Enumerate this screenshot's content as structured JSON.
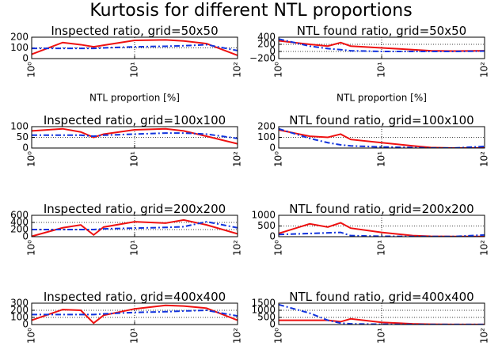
{
  "title": "Kurtosis for different NTL proportions",
  "chart_data": [
    {
      "type": "line",
      "title": "Inspected ratio, grid=50x50",
      "xlabel": "NTL proportion [%]",
      "x": [
        1,
        2,
        3,
        4,
        5,
        10,
        20,
        30,
        50,
        100
      ],
      "xscale": "log",
      "xlim": [
        1,
        100
      ],
      "xticks": [
        {
          "value": 1,
          "label": "10⁰"
        },
        {
          "value": 10,
          "label": "10¹"
        },
        {
          "value": 100,
          "label": "10²"
        }
      ],
      "ylim": [
        0,
        200
      ],
      "yticks": [
        0,
        100,
        200
      ],
      "grid": true,
      "series": [
        {
          "color": "#ee1111",
          "linestyle": "solid",
          "values": [
            40,
            150,
            130,
            110,
            125,
            170,
            175,
            165,
            140,
            30
          ]
        },
        {
          "color": "#1133dd",
          "linestyle": "dashdot",
          "values": [
            95,
            95,
            95,
            95,
            100,
            110,
            115,
            120,
            130,
            75
          ]
        }
      ]
    },
    {
      "type": "line",
      "title": "NTL found ratio, grid=50x50",
      "xlabel": "NTL proportion [%]",
      "x": [
        1,
        2,
        3,
        4,
        5,
        10,
        20,
        30,
        50,
        100
      ],
      "xscale": "log",
      "xlim": [
        1,
        100
      ],
      "xticks": [
        {
          "value": 1,
          "label": "10⁰"
        },
        {
          "value": 10,
          "label": "10¹"
        },
        {
          "value": 100,
          "label": "10²"
        }
      ],
      "ylim": [
        -200,
        400
      ],
      "yticks": [
        {
          "value": -200,
          "label": "−200"
        },
        0,
        200,
        400
      ],
      "grid": true,
      "series": [
        {
          "color": "#ee1111",
          "linestyle": "solid",
          "values": [
            300,
            200,
            150,
            250,
            150,
            100,
            50,
            20,
            10,
            20
          ]
        },
        {
          "color": "#1133dd",
          "linestyle": "dashdot",
          "values": [
            350,
            150,
            80,
            50,
            20,
            0,
            0,
            0,
            0,
            10
          ]
        }
      ]
    },
    {
      "type": "line",
      "title": "Inspected ratio, grid=100x100",
      "x": [
        1,
        2,
        3,
        4,
        5,
        10,
        20,
        30,
        50,
        100
      ],
      "xscale": "log",
      "xlim": [
        1,
        100
      ],
      "xticks": [
        {
          "value": 1,
          "label": "10⁰"
        },
        {
          "value": 10,
          "label": "10¹"
        },
        {
          "value": 100,
          "label": "10²"
        }
      ],
      "ylim": [
        0,
        100
      ],
      "yticks": [
        0,
        50,
        100
      ],
      "grid": true,
      "series": [
        {
          "color": "#ee1111",
          "linestyle": "solid",
          "values": [
            80,
            90,
            75,
            50,
            65,
            85,
            90,
            80,
            55,
            20
          ]
        },
        {
          "color": "#1133dd",
          "linestyle": "dashdot",
          "values": [
            60,
            60,
            60,
            55,
            60,
            65,
            70,
            70,
            65,
            45
          ]
        }
      ]
    },
    {
      "type": "line",
      "title": "NTL found ratio, grid=100x100",
      "x": [
        1,
        2,
        3,
        4,
        5,
        10,
        20,
        30,
        50,
        100
      ],
      "xscale": "log",
      "xlim": [
        1,
        100
      ],
      "xticks": [
        {
          "value": 1,
          "label": "10⁰"
        },
        {
          "value": 10,
          "label": "10¹"
        },
        {
          "value": 100,
          "label": "10²"
        }
      ],
      "ylim": [
        0,
        200
      ],
      "yticks": [
        0,
        100,
        200
      ],
      "grid": true,
      "series": [
        {
          "color": "#ee1111",
          "linestyle": "solid",
          "values": [
            170,
            110,
            100,
            130,
            80,
            50,
            20,
            5,
            0,
            0
          ]
        },
        {
          "color": "#1133dd",
          "linestyle": "dashdot",
          "values": [
            180,
            90,
            50,
            30,
            20,
            10,
            5,
            0,
            0,
            15
          ]
        }
      ]
    },
    {
      "type": "line",
      "title": "Inspected ratio, grid=200x200",
      "x": [
        1,
        2,
        3,
        4,
        5,
        10,
        20,
        30,
        50,
        100
      ],
      "xscale": "log",
      "xlim": [
        1,
        100
      ],
      "xticks": [
        {
          "value": 1,
          "label": "10⁰"
        },
        {
          "value": 10,
          "label": "10¹"
        },
        {
          "value": 100,
          "label": "10²"
        }
      ],
      "ylim": [
        0,
        600
      ],
      "yticks": [
        0,
        200,
        400,
        600
      ],
      "grid": true,
      "series": [
        {
          "color": "#ee1111",
          "linestyle": "solid",
          "values": [
            10,
            250,
            330,
            50,
            270,
            420,
            380,
            470,
            330,
            80
          ]
        },
        {
          "color": "#1133dd",
          "linestyle": "dashdot",
          "values": [
            200,
            200,
            200,
            200,
            220,
            240,
            260,
            280,
            420,
            250
          ]
        }
      ]
    },
    {
      "type": "line",
      "title": "NTL found ratio, grid=200x200",
      "x": [
        1,
        2,
        3,
        4,
        5,
        10,
        20,
        30,
        50,
        100
      ],
      "xscale": "log",
      "xlim": [
        1,
        100
      ],
      "xticks": [
        {
          "value": 1,
          "label": "10⁰"
        },
        {
          "value": 10,
          "label": "10¹"
        },
        {
          "value": 100,
          "label": "10²"
        }
      ],
      "ylim": [
        0,
        1000
      ],
      "yticks": [
        0,
        500,
        1000
      ],
      "grid": true,
      "series": [
        {
          "color": "#ee1111",
          "linestyle": "solid",
          "values": [
            150,
            600,
            450,
            650,
            400,
            200,
            50,
            20,
            10,
            10
          ]
        },
        {
          "color": "#1133dd",
          "linestyle": "dashdot",
          "values": [
            100,
            150,
            180,
            200,
            50,
            20,
            10,
            10,
            10,
            80
          ]
        }
      ]
    },
    {
      "type": "line",
      "title": "Inspected ratio, grid=400x400",
      "x": [
        1,
        2,
        3,
        4,
        5,
        10,
        20,
        30,
        50,
        100
      ],
      "xscale": "log",
      "xlim": [
        1,
        100
      ],
      "xticks": [
        {
          "value": 1,
          "label": "10⁰"
        },
        {
          "value": 10,
          "label": "10¹"
        },
        {
          "value": 100,
          "label": "10²"
        }
      ],
      "ylim": [
        0,
        300
      ],
      "yticks": [
        0,
        100,
        200,
        300
      ],
      "grid": true,
      "series": [
        {
          "color": "#ee1111",
          "linestyle": "solid",
          "values": [
            60,
            210,
            200,
            20,
            130,
            220,
            270,
            260,
            230,
            60
          ]
        },
        {
          "color": "#1133dd",
          "linestyle": "dashdot",
          "values": [
            140,
            140,
            140,
            140,
            150,
            170,
            180,
            190,
            200,
            120
          ]
        }
      ]
    },
    {
      "type": "line",
      "title": "NTL found ratio, grid=400x400",
      "x": [
        1,
        2,
        3,
        4,
        5,
        10,
        20,
        30,
        50,
        100
      ],
      "xscale": "log",
      "xlim": [
        1,
        100
      ],
      "xticks": [
        {
          "value": 1,
          "label": "10⁰"
        },
        {
          "value": 10,
          "label": "10¹"
        },
        {
          "value": 100,
          "label": "10²"
        }
      ],
      "ylim": [
        0,
        1500
      ],
      "yticks": [
        0,
        500,
        1000,
        1500
      ],
      "grid": true,
      "series": [
        {
          "color": "#ee1111",
          "linestyle": "solid",
          "values": [
            300,
            300,
            300,
            200,
            400,
            150,
            50,
            20,
            10,
            10
          ]
        },
        {
          "color": "#1133dd",
          "linestyle": "dashdot",
          "values": [
            1400,
            800,
            300,
            100,
            50,
            20,
            10,
            10,
            10,
            10
          ]
        }
      ]
    }
  ]
}
